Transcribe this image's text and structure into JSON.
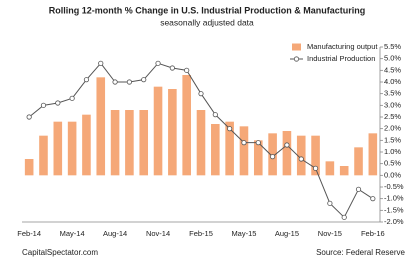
{
  "chart_data": {
    "type": "bar-line",
    "title": "Rolling 12-month % Change in U.S. Industrial Production & Manufacturing",
    "subtitle": "seasonally adjusted data",
    "credit": "CapitalSpectator.com",
    "source": "Source: Federal Reserve",
    "categories": [
      "Feb-14",
      null,
      null,
      "May-14",
      null,
      null,
      "Aug-14",
      null,
      null,
      "Nov-14",
      null,
      null,
      "Feb-15",
      null,
      null,
      "May-15",
      null,
      null,
      "Aug-15",
      null,
      null,
      "Nov-15",
      null,
      null,
      "Feb-16"
    ],
    "series": [
      {
        "name": "Manufacturing output",
        "kind": "bar",
        "color": "#f5a878",
        "values": [
          0.7,
          1.7,
          2.3,
          2.3,
          2.6,
          4.2,
          2.8,
          2.8,
          2.8,
          3.8,
          3.7,
          4.3,
          2.8,
          2.2,
          2.3,
          2.1,
          1.5,
          1.8,
          1.9,
          1.7,
          1.7,
          0.6,
          0.4,
          1.2,
          1.8
        ]
      },
      {
        "name": "Industrial Production",
        "kind": "line",
        "color": "#555555",
        "values": [
          2.5,
          3.0,
          3.1,
          3.3,
          4.1,
          4.8,
          4.0,
          4.0,
          4.1,
          4.8,
          4.6,
          4.5,
          3.5,
          2.6,
          2.0,
          1.4,
          1.4,
          0.8,
          1.3,
          0.7,
          0.3,
          -1.2,
          -1.8,
          -0.6,
          -1.0
        ]
      }
    ],
    "ylim": [
      -2.0,
      5.5
    ],
    "yticks": [
      {
        "value": -2.0,
        "label": "-2.0%"
      },
      {
        "value": -1.5,
        "label": "-1.5%"
      },
      {
        "value": -1.0,
        "label": "-1.0%"
      },
      {
        "value": -0.5,
        "label": "-0.5%"
      },
      {
        "value": 0,
        "label": "0.0%"
      },
      {
        "value": 0.5,
        "label": "0.5%"
      },
      {
        "value": 1.0,
        "label": "1.0%"
      },
      {
        "value": 1.5,
        "label": "1.5%"
      },
      {
        "value": 2.0,
        "label": "2.0%"
      },
      {
        "value": 2.5,
        "label": "2.5%"
      },
      {
        "value": 3.0,
        "label": "3.0%"
      },
      {
        "value": 3.5,
        "label": "3.5%"
      },
      {
        "value": 4.0,
        "label": "4.0%"
      },
      {
        "value": 4.5,
        "label": "4.5%"
      },
      {
        "value": 5.0,
        "label": "5.0%"
      },
      {
        "value": 5.5,
        "label": "5.5%"
      }
    ],
    "legend": "top-right"
  }
}
